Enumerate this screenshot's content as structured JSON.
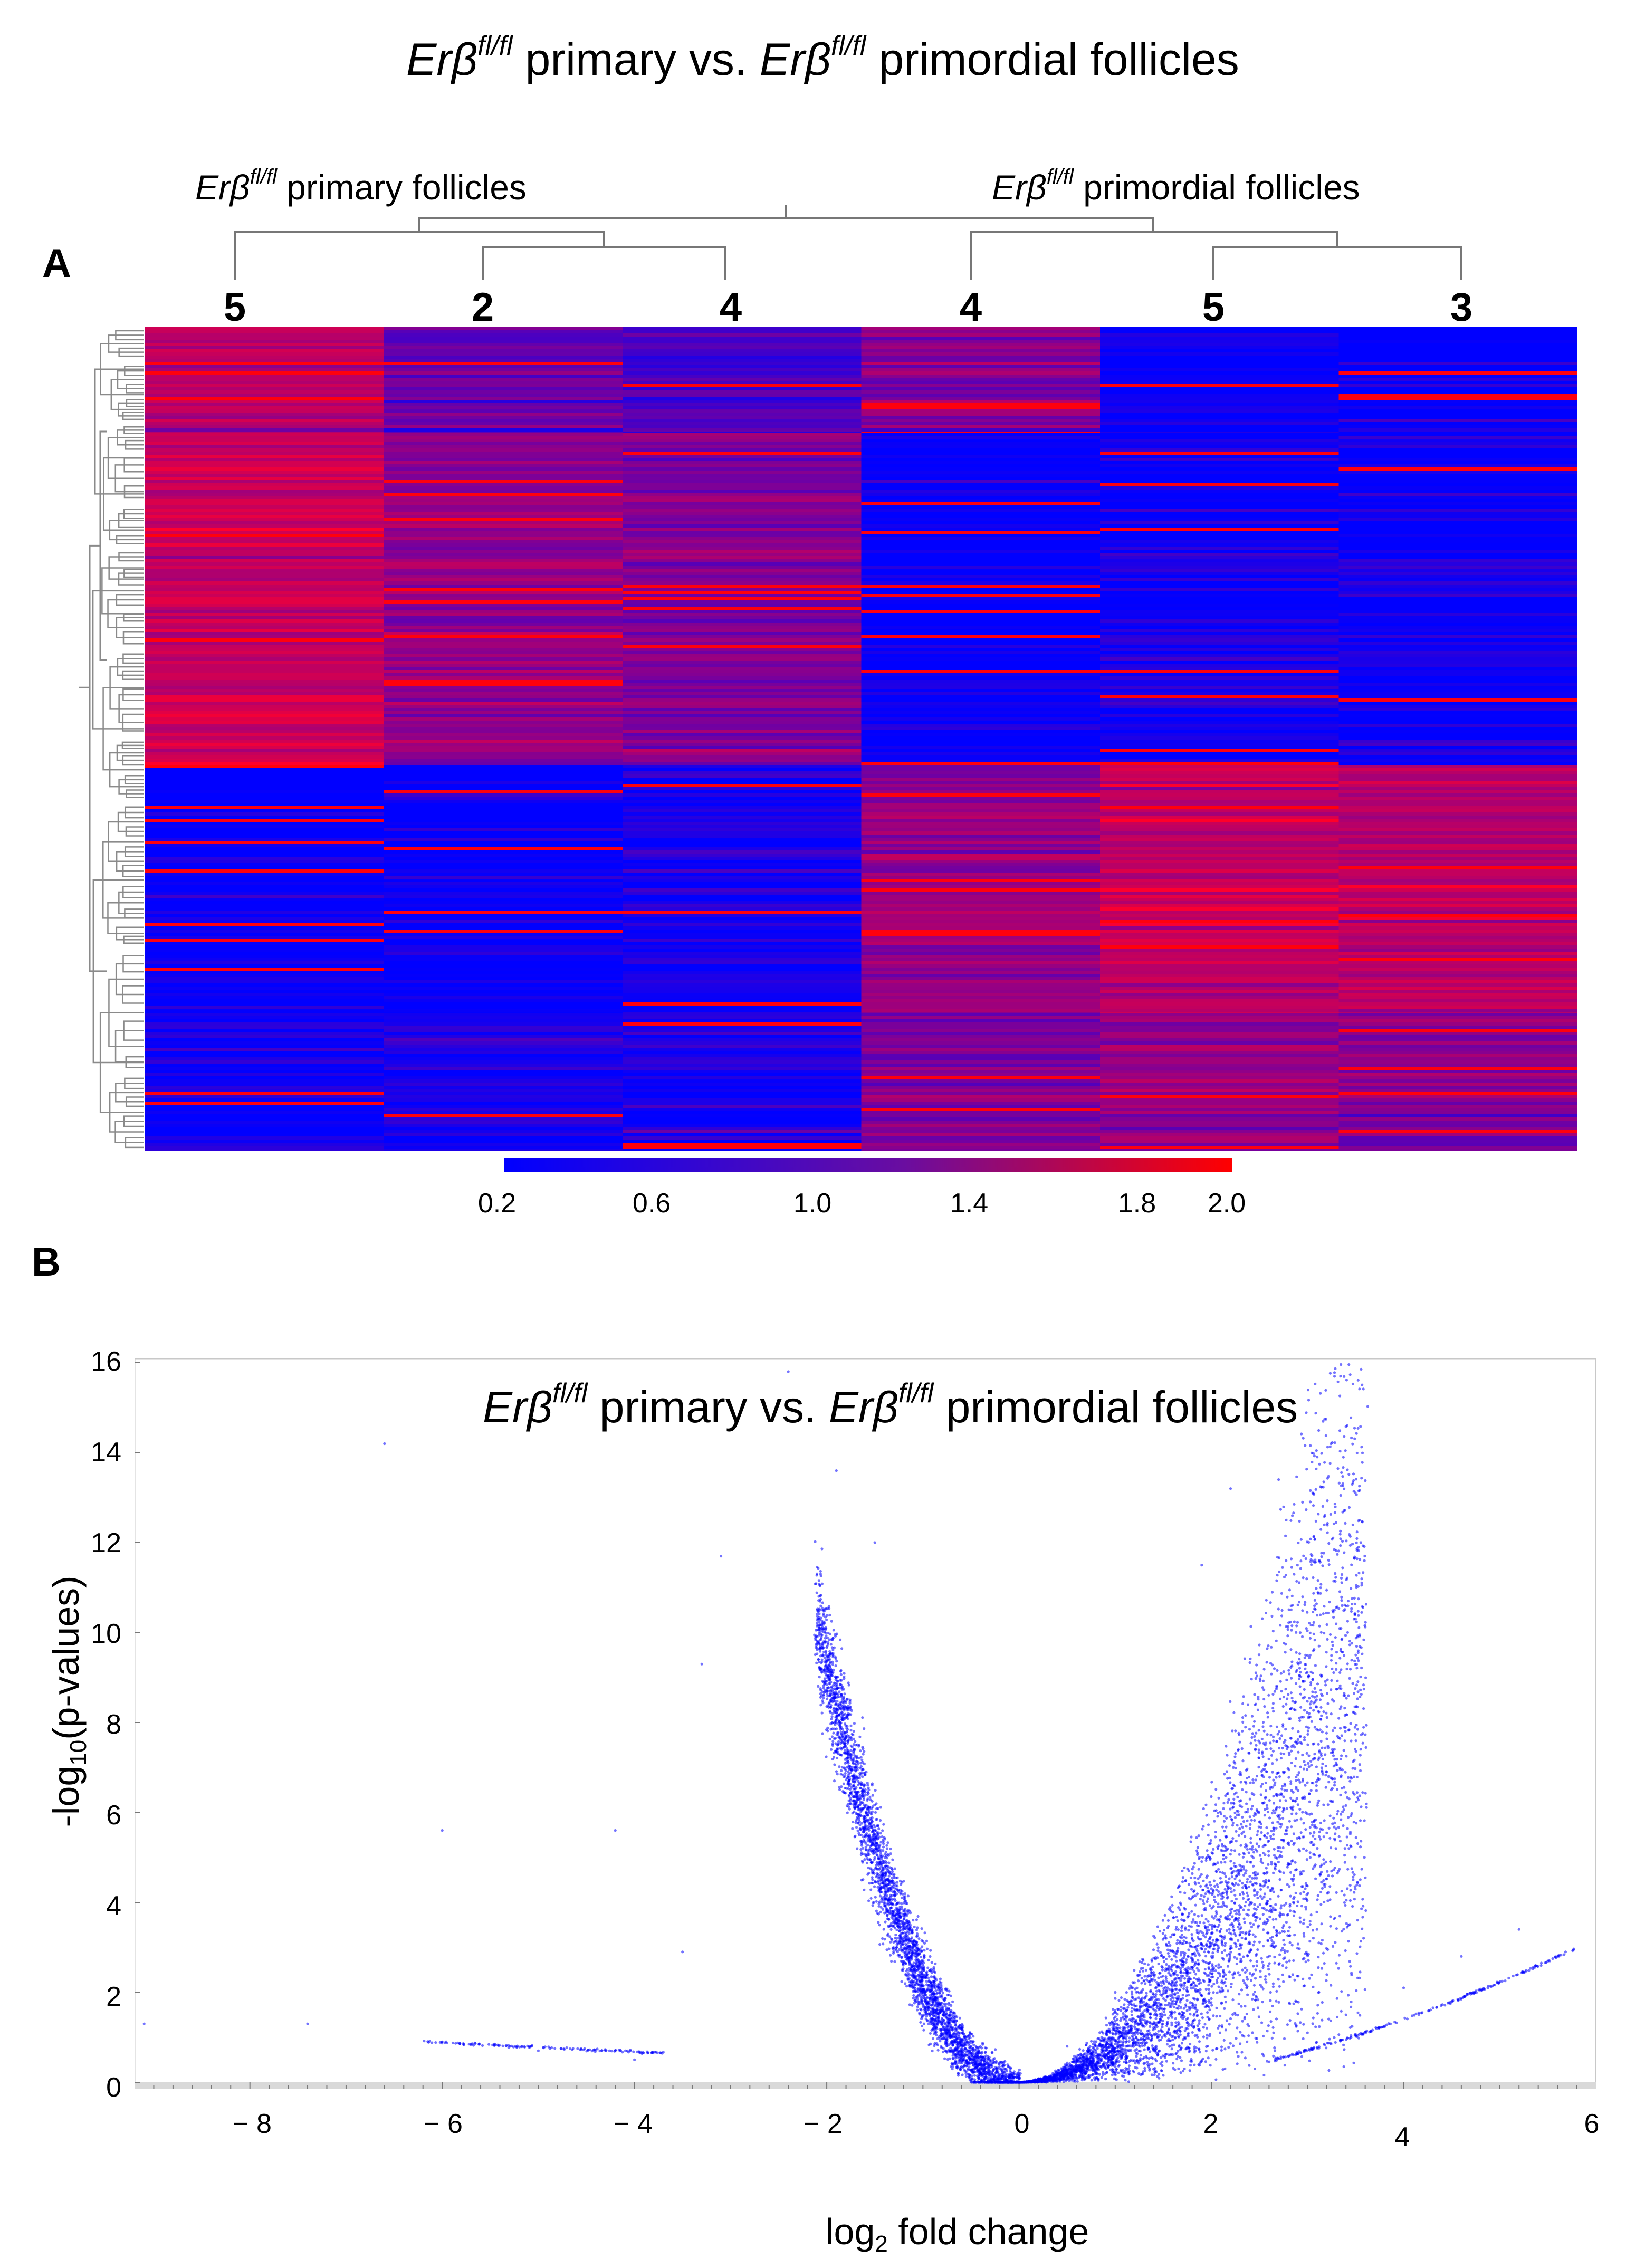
{
  "header": {
    "pre1": "Erβ",
    "sup1": "fl/fl",
    "mid": " primary  vs. ",
    "pre2": "Erβ",
    "sup2": "fl/fl",
    "post": " primordial follicles"
  },
  "panel_a": {
    "letter": "A",
    "group_left": {
      "pre": "Erβ",
      "sup": "fl/fl",
      "post": " primary follicles"
    },
    "group_right": {
      "pre": "Erβ",
      "sup": "fl/fl",
      "post": " primordial follicles"
    },
    "samples": [
      "5",
      "2",
      "4",
      "4",
      "5",
      "3"
    ],
    "colorbar": {
      "ticks": [
        "0.2",
        "0.6",
        "1.0",
        "1.4",
        "1.8",
        "2.0"
      ],
      "low_color": "#0000ff",
      "high_color": "#ff0000"
    }
  },
  "panel_b": {
    "letter": "B",
    "title": {
      "pre1": "Erβ",
      "sup1": "fl/fl",
      "mid": " primary  vs. ",
      "pre2": "Erβ",
      "sup2": "fl/fl",
      "post": "  primordial follicles"
    },
    "ylabel": {
      "pre": "-log",
      "sub": "10",
      "post": "(p-values)"
    },
    "xlabel": {
      "pre": "log",
      "sub": "2",
      "post": " fold change"
    },
    "yticks": [
      "16",
      "14",
      "12",
      "10",
      "8",
      "6",
      "4",
      "2",
      "0"
    ],
    "xticks": [
      "− 8",
      "− 6",
      "− 4",
      "− 2",
      "0",
      "2",
      "4",
      "6"
    ],
    "point_color": "#0000ff"
  },
  "chart_data": [
    {
      "type": "heatmap",
      "columns": [
        "5",
        "2",
        "4",
        "4",
        "5",
        "3"
      ],
      "column_groups": [
        {
          "name": "Erβfl/fl primary follicles",
          "columns": [
            0,
            1,
            2
          ]
        },
        {
          "name": "Erβfl/fl primordial follicles",
          "columns": [
            3,
            4,
            5
          ]
        }
      ],
      "color_scale": {
        "min": 0.2,
        "max": 2.0,
        "low": "#0000ff",
        "high": "#ff0000"
      },
      "blocks": [
        {
          "rows": "top",
          "values": [
            1.3,
            0.8,
            0.6,
            1.0,
            0.2,
            0.2
          ]
        },
        {
          "rows": "upper-middle",
          "values": [
            1.4,
            1.1,
            1.0,
            0.2,
            0.3,
            0.3
          ]
        },
        {
          "rows": "lower-middle",
          "values": [
            0.2,
            0.2,
            0.3,
            1.1,
            1.4,
            1.3
          ]
        },
        {
          "rows": "bottom",
          "values": [
            0.3,
            0.3,
            0.4,
            1.0,
            1.1,
            1.0
          ]
        }
      ]
    },
    {
      "type": "scatter",
      "title": "Erβfl/fl primary  vs. Erβfl/fl  primordial follicles",
      "xlabel": "log2 fold change",
      "ylabel": "-log10(p-values)",
      "xlim": [
        -9.2,
        6.0
      ],
      "ylim": [
        0,
        16
      ],
      "shape": "volcano",
      "series": [
        {
          "name": "",
          "points": [
            [
              -6.6,
              14.2
            ],
            [
              -2.4,
              15.8
            ],
            [
              -3.1,
              11.7
            ],
            [
              2.7,
              13.4
            ],
            [
              -1.9,
              13.6
            ],
            [
              2.2,
              13.2
            ],
            [
              -1.5,
              12.0
            ],
            [
              1.9,
              11.5
            ],
            [
              3.5,
              10.3
            ],
            [
              -3.3,
              9.3
            ],
            [
              -9.1,
              1.3
            ],
            [
              -7.4,
              1.3
            ],
            [
              -6.0,
              0.9
            ],
            [
              -5.0,
              0.7
            ],
            [
              -4.0,
              0.5
            ],
            [
              -3.5,
              2.9
            ],
            [
              -4.2,
              5.6
            ],
            [
              -6.0,
              5.6
            ],
            [
              5.2,
              3.4
            ],
            [
              4.6,
              2.8
            ],
            [
              4.0,
              2.1
            ],
            [
              3.4,
              1.5
            ],
            [
              3.0,
              1.1
            ],
            [
              -1.0,
              2.0
            ],
            [
              1.0,
              2.0
            ],
            [
              -0.5,
              0.8
            ],
            [
              0.5,
              0.8
            ],
            [
              0.0,
              0.0
            ]
          ]
        }
      ]
    }
  ]
}
